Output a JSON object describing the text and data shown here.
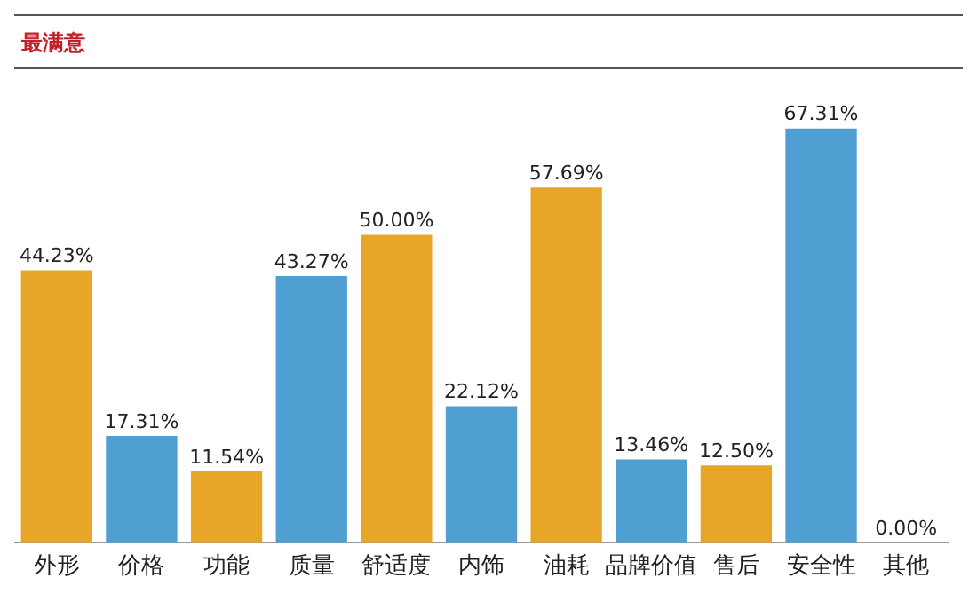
{
  "chart_data": {
    "type": "bar",
    "title": "最满意",
    "categories": [
      "外形",
      "价格",
      "功能",
      "质量",
      "舒适度",
      "内饰",
      "油耗",
      "品牌价值",
      "售后",
      "安全性",
      "其他"
    ],
    "values": [
      44.23,
      17.31,
      11.54,
      43.27,
      50.0,
      22.12,
      57.69,
      13.46,
      12.5,
      67.31,
      0.0
    ],
    "colors": [
      "#e8a628",
      "#4f9fd2",
      "#e8a628",
      "#4f9fd2",
      "#e8a628",
      "#4f9fd2",
      "#e8a628",
      "#4f9fd2",
      "#e8a628",
      "#4f9fd2",
      "#e8a628"
    ],
    "value_labels": [
      "44.23%",
      "17.31%",
      "11.54%",
      "43.27%",
      "50.00%",
      "22.12%",
      "57.69%",
      "13.46%",
      "12.50%",
      "67.31%",
      "0.00%"
    ],
    "grid": false,
    "legend": false
  }
}
